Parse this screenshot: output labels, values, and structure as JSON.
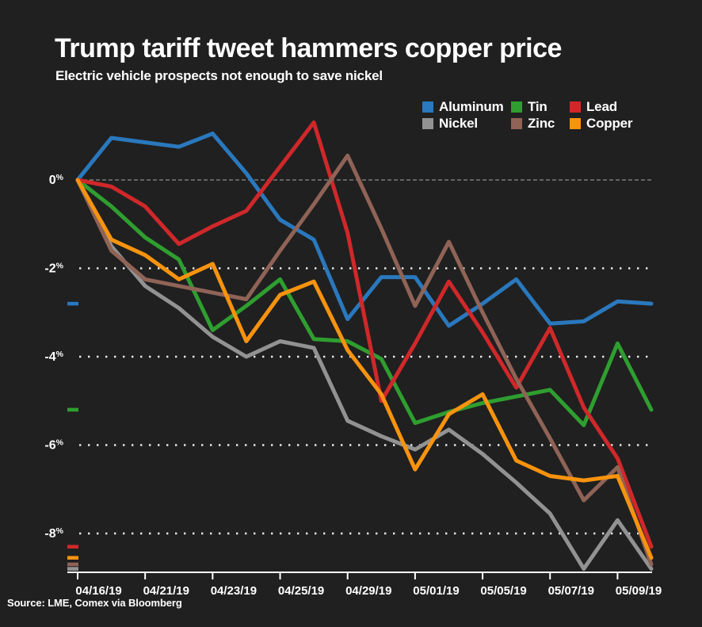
{
  "page": {
    "background": "#202020"
  },
  "header": {
    "title": "Trump tariff tweet hammers copper price",
    "subtitle": "Electric vehicle prospects not enough to save nickel"
  },
  "source": "Source: LME, Comex via Bloomberg",
  "legend": {
    "position": "top-right",
    "items": [
      {
        "label": "Aluminum",
        "color": "#2a78bd"
      },
      {
        "label": "Tin",
        "color": "#2f9e30"
      },
      {
        "label": "Lead",
        "color": "#d0282a"
      },
      {
        "label": "Nickel",
        "color": "#929292"
      },
      {
        "label": "Zinc",
        "color": "#8f6356"
      },
      {
        "label": "Copper",
        "color": "#f7930e"
      }
    ]
  },
  "chart_data": {
    "type": "line",
    "title": "Trump tariff tweet hammers copper price",
    "subtitle": "Electric vehicle prospects not enough to save nickel",
    "unit": "%",
    "grid": "horizontal dotted",
    "legend_position": "top-right",
    "x_tick_labels": [
      "04/16/19",
      "04/21/19",
      "04/23/19",
      "04/25/19",
      "04/29/19",
      "05/01/19",
      "05/05/19",
      "05/07/19",
      "05/09/19"
    ],
    "y_tick_labels": [
      "0%",
      "-2%",
      "-4%",
      "-6%",
      "-8%"
    ],
    "y_tick_values": [
      0,
      -2,
      -4,
      -6,
      -8
    ],
    "ylim": [
      -8.9,
      1.5
    ],
    "points_per_series": 18,
    "x_labels_at_point_indices": [
      1,
      3,
      5,
      7,
      9,
      11,
      13,
      15,
      17
    ],
    "series": [
      {
        "name": "Aluminum",
        "color": "#2a78bd",
        "values": [
          0,
          0.95,
          0.85,
          0.75,
          1.05,
          0.15,
          -0.9,
          -1.35,
          -3.15,
          -2.2,
          -2.2,
          -3.3,
          -2.8,
          -2.25,
          -3.25,
          -3.2,
          -2.75,
          -2.8
        ]
      },
      {
        "name": "Tin",
        "color": "#2f9e30",
        "values": [
          0,
          -0.6,
          -1.3,
          -1.8,
          -3.4,
          -2.85,
          -2.25,
          -3.6,
          -3.65,
          -4.05,
          -5.5,
          -5.25,
          -5.05,
          -4.9,
          -4.75,
          -5.55,
          -3.7,
          -5.2
        ]
      },
      {
        "name": "Lead",
        "color": "#d0282a",
        "values": [
          0,
          -0.15,
          -0.6,
          -1.45,
          -1.05,
          -0.7,
          0.3,
          1.3,
          -1.2,
          -5.0,
          -3.7,
          -2.3,
          -3.45,
          -4.7,
          -3.35,
          -5.15,
          -6.3,
          -8.3
        ]
      },
      {
        "name": "Nickel",
        "color": "#929292",
        "values": [
          0,
          -1.5,
          -2.4,
          -2.9,
          -3.55,
          -4.0,
          -3.65,
          -3.8,
          -5.45,
          -5.8,
          -6.1,
          -5.65,
          -6.2,
          -6.85,
          -7.55,
          -8.8,
          -7.7,
          -8.8
        ]
      },
      {
        "name": "Zinc",
        "color": "#8f6356",
        "values": [
          0,
          -1.6,
          -2.25,
          -2.4,
          -2.55,
          -2.7,
          -1.6,
          -0.55,
          0.55,
          -1.1,
          -2.85,
          -1.4,
          -3.0,
          -4.5,
          -5.85,
          -7.25,
          -6.5,
          -8.7
        ]
      },
      {
        "name": "Copper",
        "color": "#f7930e",
        "values": [
          0,
          -1.35,
          -1.7,
          -2.25,
          -1.9,
          -3.65,
          -2.6,
          -2.3,
          -3.85,
          -4.85,
          -6.55,
          -5.3,
          -4.85,
          -6.35,
          -6.7,
          -6.8,
          -6.7,
          -8.55
        ]
      }
    ],
    "final_value_markers": true
  }
}
